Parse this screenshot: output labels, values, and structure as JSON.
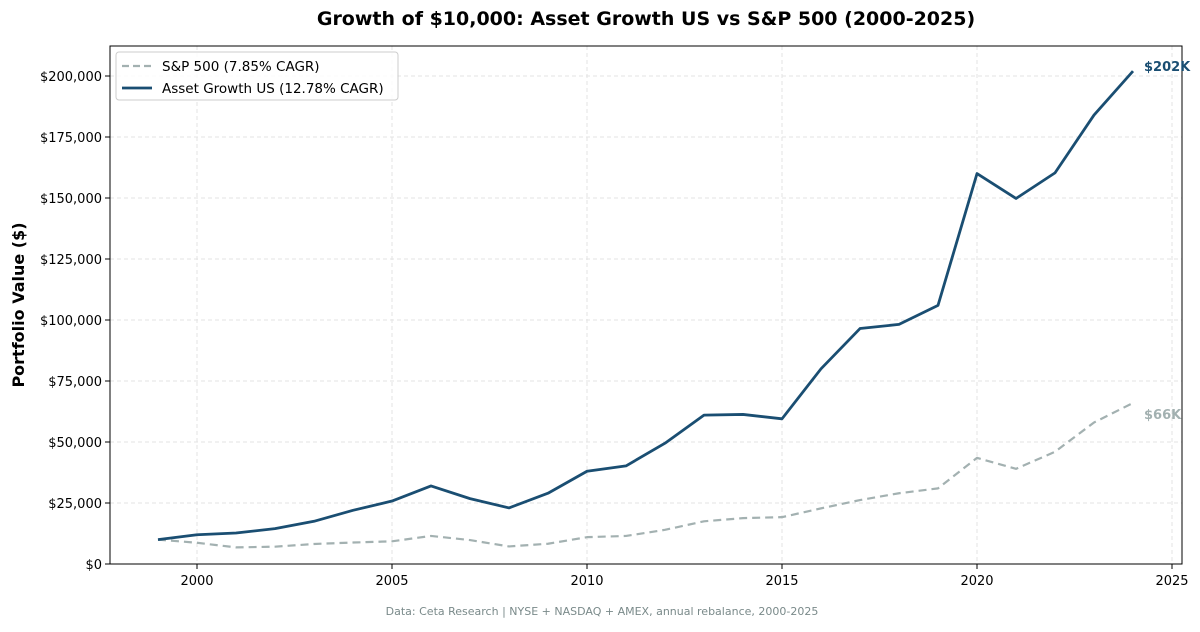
{
  "chart_data": {
    "type": "line",
    "title": "Growth of $10,000: Asset Growth US vs S&P 500 (2000-2025)",
    "xlabel": "",
    "ylabel": "Portfolio Value ($)",
    "xlim": [
      1998,
      2025.3
    ],
    "ylim": [
      0,
      212000
    ],
    "x_ticks": [
      2000,
      2005,
      2010,
      2015,
      2020,
      2025
    ],
    "y_ticks": [
      0,
      25000,
      50000,
      75000,
      100000,
      125000,
      150000,
      175000,
      200000
    ],
    "y_tick_labels": [
      "$0",
      "$25,000",
      "$50,000",
      "$75,000",
      "$100,000",
      "$125,000",
      "$150,000",
      "$175,000",
      "$200,000"
    ],
    "grid": true,
    "legend_position": "top-left",
    "x": [
      1999,
      2000,
      2001,
      2002,
      2003,
      2004,
      2005,
      2006,
      2007,
      2008,
      2009,
      2010,
      2011,
      2012,
      2013,
      2014,
      2015,
      2016,
      2017,
      2018,
      2019,
      2020,
      2021,
      2022,
      2023,
      2024
    ],
    "series": [
      {
        "name": "S&P 500 (7.85% CAGR)",
        "color": "#a3b1b1",
        "style": "dashed",
        "end_label": "$66K",
        "values": [
          10000,
          8700,
          6800,
          7100,
          8200,
          8800,
          9300,
          11500,
          9800,
          7200,
          8300,
          11000,
          11500,
          14000,
          17500,
          18800,
          19200,
          22800,
          26200,
          29000,
          31000,
          43500,
          39000,
          46000,
          58000,
          66000
        ]
      },
      {
        "name": "Asset Growth US (12.78% CAGR)",
        "color": "#1a4e72",
        "style": "solid",
        "end_label": "$202K",
        "values": [
          10000,
          12000,
          12700,
          14500,
          17500,
          22000,
          25800,
          32000,
          26800,
          23000,
          29000,
          38000,
          40200,
          49500,
          61000,
          61300,
          59500,
          80000,
          96500,
          98200,
          106000,
          160000,
          149800,
          160300,
          184000,
          202000
        ]
      }
    ],
    "footnote": "Data: Ceta Research | NYSE + NASDAQ + AMEX, annual rebalance, 2000-2025"
  }
}
